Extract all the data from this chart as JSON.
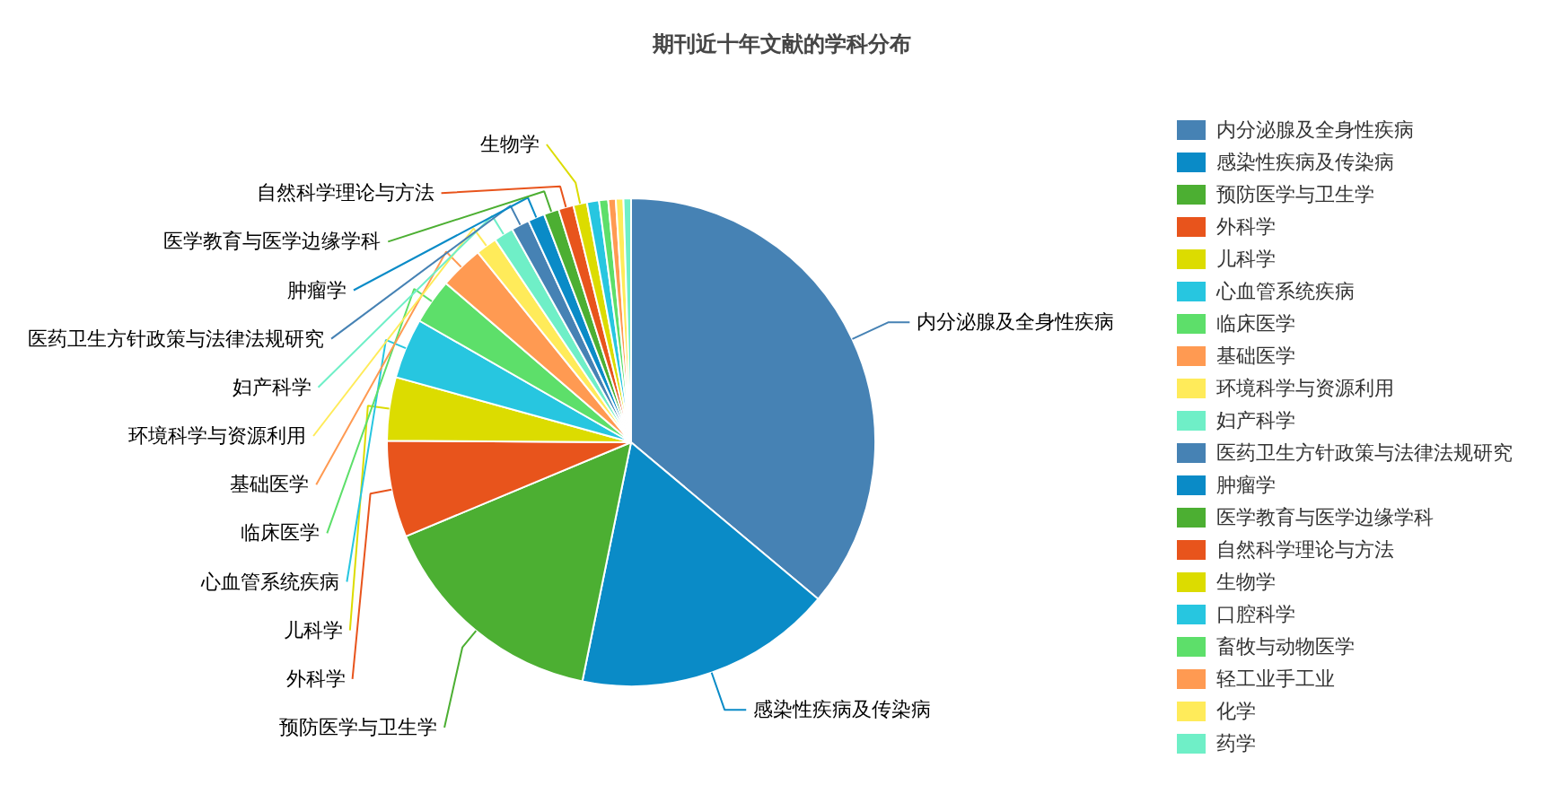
{
  "chart_data": {
    "type": "pie",
    "title": "期刊近十年文献的学科分布",
    "categories": [
      "内分泌腺及全身性疾病",
      "感染性疾病及传染病",
      "预防医学与卫生学",
      "外科学",
      "儿科学",
      "心血管系统疾病",
      "临床医学",
      "基础医学",
      "环境科学与资源利用",
      "妇产科学",
      "医药卫生方针政策与法律法规研究",
      "肿瘤学",
      "医学教育与医学边缘学科",
      "自然科学理论与方法",
      "生物学",
      "口腔科学",
      "畜牧与动物医学",
      "轻工业手工业",
      "化学",
      "药学"
    ],
    "values": [
      36.1,
      17.1,
      15.5,
      6.4,
      4.2,
      4.0,
      3.0,
      2.9,
      1.4,
      1.3,
      1.2,
      1.1,
      1.0,
      1.0,
      0.9,
      0.8,
      0.6,
      0.5,
      0.5,
      0.5
    ],
    "colors": [
      "#4682b4",
      "#0a8bc7",
      "#4caf32",
      "#e8541c",
      "#dcdc00",
      "#27c6e0",
      "#5ddf6a",
      "#ff9a52",
      "#ffeb5a",
      "#6fefc7",
      "#4682b4",
      "#0a8bc7",
      "#4caf32",
      "#e8541c",
      "#dcdc00",
      "#27c6e0",
      "#5ddf6a",
      "#ff9a52",
      "#ffeb5a",
      "#6fefc7"
    ],
    "legend": "right"
  }
}
